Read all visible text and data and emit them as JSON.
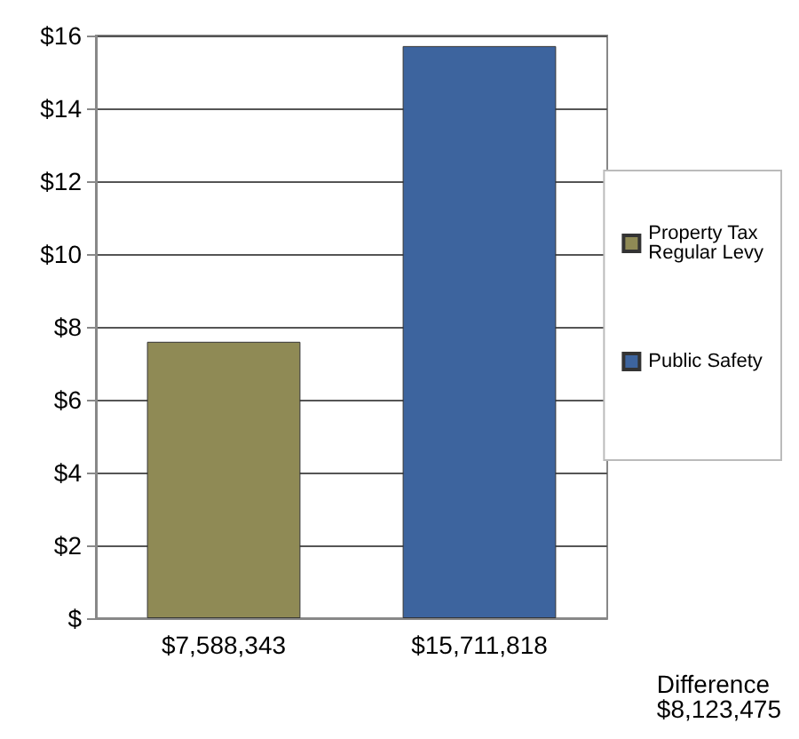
{
  "chart_data": {
    "type": "bar",
    "stacked": true,
    "categories": [
      "$7,588,343",
      "$15,711,818"
    ],
    "series": [
      {
        "name": "Property Tax\nRegular Levy",
        "color": "#8f8a55",
        "values": [
          7.59,
          null
        ]
      },
      {
        "name": "Public Safety",
        "color": "#3d649e",
        "values": [
          null,
          15.71
        ]
      }
    ],
    "ylim": [
      0,
      16
    ],
    "yticks": [
      {
        "value": 0,
        "label": "$"
      },
      {
        "value": 2,
        "label": "$2"
      },
      {
        "value": 4,
        "label": "$4"
      },
      {
        "value": 6,
        "label": "$6"
      },
      {
        "value": 8,
        "label": "$8"
      },
      {
        "value": 10,
        "label": "$10"
      },
      {
        "value": 12,
        "label": "$12"
      },
      {
        "value": 14,
        "label": "$14"
      },
      {
        "value": 16,
        "label": "$16"
      }
    ],
    "grid": "y",
    "legend": "right",
    "annotations": [
      "Difference\n$8,123,475"
    ]
  }
}
